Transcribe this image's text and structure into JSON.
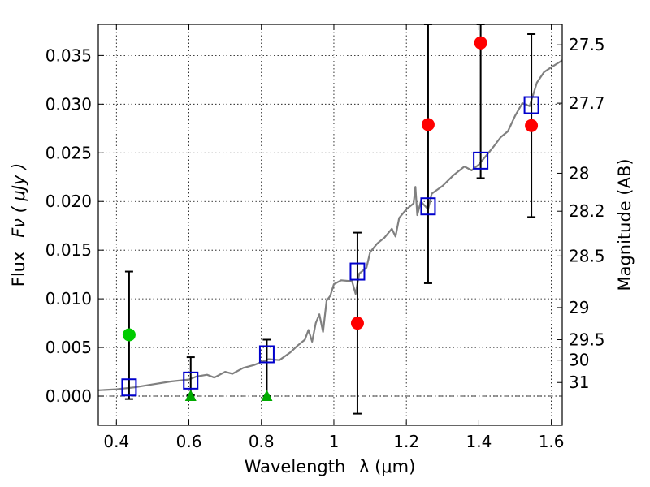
{
  "chart_data": {
    "type": "scatter",
    "xlabel_text": "Wavelength",
    "xlabel_math": "λ (μm)",
    "ylabel_text": "Flux",
    "ylabel_math": "Fν ( μJy )",
    "ylabel_right": "Magnitude (AB)",
    "xlim": [
      0.35,
      1.63
    ],
    "ylim": [
      -0.003,
      0.0382
    ],
    "grid": true,
    "x_ticks": [
      0.4,
      0.6,
      0.8,
      1.0,
      1.2,
      1.4,
      1.6
    ],
    "x_tick_labels": [
      "0.4",
      "0.6",
      "0.8",
      "1",
      "1.2",
      "1.4",
      "1.6"
    ],
    "y_ticks": [
      0.0,
      0.005,
      0.01,
      0.015,
      0.02,
      0.025,
      0.03,
      0.035
    ],
    "y_tick_labels": [
      "0.000",
      "0.005",
      "0.010",
      "0.015",
      "0.020",
      "0.025",
      "0.030",
      "0.035"
    ],
    "mag_ticks": [
      {
        "flux": 0.0361,
        "label": "27.5"
      },
      {
        "flux": 0.0301,
        "label": "27.7"
      },
      {
        "flux": 0.0229,
        "label": "28"
      },
      {
        "flux": 0.019,
        "label": "28.2"
      },
      {
        "flux": 0.0144,
        "label": "28.5"
      },
      {
        "flux": 0.0091,
        "label": "29"
      },
      {
        "flux": 0.0058,
        "label": "29.5"
      },
      {
        "flux": 0.0037,
        "label": "30"
      },
      {
        "flux": 0.0014,
        "label": "31"
      }
    ],
    "series": [
      {
        "name": "model spectrum",
        "kind": "line",
        "color": "#808080",
        "points": [
          [
            0.35,
            0.0006
          ],
          [
            0.4,
            0.0007
          ],
          [
            0.45,
            0.0009
          ],
          [
            0.5,
            0.0012
          ],
          [
            0.55,
            0.0015
          ],
          [
            0.6,
            0.0017
          ],
          [
            0.62,
            0.002
          ],
          [
            0.65,
            0.0022
          ],
          [
            0.67,
            0.0019
          ],
          [
            0.7,
            0.0025
          ],
          [
            0.72,
            0.0023
          ],
          [
            0.75,
            0.0029
          ],
          [
            0.78,
            0.0032
          ],
          [
            0.8,
            0.0035
          ],
          [
            0.82,
            0.0038
          ],
          [
            0.85,
            0.0037
          ],
          [
            0.88,
            0.0045
          ],
          [
            0.9,
            0.0052
          ],
          [
            0.92,
            0.0058
          ],
          [
            0.93,
            0.0068
          ],
          [
            0.94,
            0.0056
          ],
          [
            0.95,
            0.0075
          ],
          [
            0.96,
            0.0084
          ],
          [
            0.97,
            0.0066
          ],
          [
            0.98,
            0.0098
          ],
          [
            0.99,
            0.0103
          ],
          [
            1.0,
            0.0115
          ],
          [
            1.02,
            0.0119
          ],
          [
            1.05,
            0.0118
          ],
          [
            1.06,
            0.0105
          ],
          [
            1.07,
            0.0126
          ],
          [
            1.09,
            0.0132
          ],
          [
            1.1,
            0.0148
          ],
          [
            1.12,
            0.0157
          ],
          [
            1.14,
            0.0163
          ],
          [
            1.16,
            0.0172
          ],
          [
            1.17,
            0.0164
          ],
          [
            1.18,
            0.0183
          ],
          [
            1.2,
            0.0192
          ],
          [
            1.22,
            0.0198
          ],
          [
            1.225,
            0.0215
          ],
          [
            1.23,
            0.0186
          ],
          [
            1.24,
            0.02
          ],
          [
            1.26,
            0.0192
          ],
          [
            1.27,
            0.0208
          ],
          [
            1.3,
            0.0216
          ],
          [
            1.33,
            0.0227
          ],
          [
            1.36,
            0.0236
          ],
          [
            1.38,
            0.0232
          ],
          [
            1.4,
            0.0238
          ],
          [
            1.42,
            0.0247
          ],
          [
            1.44,
            0.0256
          ],
          [
            1.46,
            0.0266
          ],
          [
            1.48,
            0.0272
          ],
          [
            1.5,
            0.0288
          ],
          [
            1.52,
            0.0301
          ],
          [
            1.54,
            0.0298
          ],
          [
            1.56,
            0.0322
          ],
          [
            1.58,
            0.0333
          ],
          [
            1.6,
            0.0338
          ],
          [
            1.63,
            0.0345
          ]
        ]
      },
      {
        "name": "photometry (squares)",
        "kind": "square",
        "color": "#0000cc",
        "points": [
          {
            "x": 0.435,
            "y": 0.0009,
            "yerr_low": -0.0003,
            "yerr_high": 0.0128
          },
          {
            "x": 0.605,
            "y": 0.0016,
            "yerr_low": 0.0001,
            "yerr_high": 0.004
          },
          {
            "x": 0.815,
            "y": 0.0043,
            "yerr_low": 0.0,
            "yerr_high": 0.0058
          },
          {
            "x": 1.065,
            "y": 0.0128,
            "yerr_low": -0.0018,
            "yerr_high": 0.0168
          },
          {
            "x": 1.26,
            "y": 0.0195,
            "yerr_low": 0.0116,
            "yerr_high": 0.0382
          },
          {
            "x": 1.405,
            "y": 0.0242,
            "yerr_low": 0.0224,
            "yerr_high": 0.0382
          },
          {
            "x": 1.545,
            "y": 0.0299,
            "yerr_low": 0.0184,
            "yerr_high": 0.0372
          }
        ]
      },
      {
        "name": "red points",
        "kind": "circle",
        "color": "#ff0000",
        "points": [
          {
            "x": 1.065,
            "y": 0.0075
          },
          {
            "x": 1.26,
            "y": 0.0279
          },
          {
            "x": 1.405,
            "y": 0.0363
          },
          {
            "x": 1.545,
            "y": 0.0278
          }
        ]
      },
      {
        "name": "green circle",
        "kind": "circle",
        "color": "#00cc00",
        "points": [
          {
            "x": 0.435,
            "y": 0.0063
          }
        ]
      },
      {
        "name": "green triangles",
        "kind": "triangle",
        "color": "#00aa00",
        "points": [
          {
            "x": 0.605,
            "y": 0.0
          },
          {
            "x": 0.815,
            "y": 0.0
          }
        ]
      }
    ]
  }
}
